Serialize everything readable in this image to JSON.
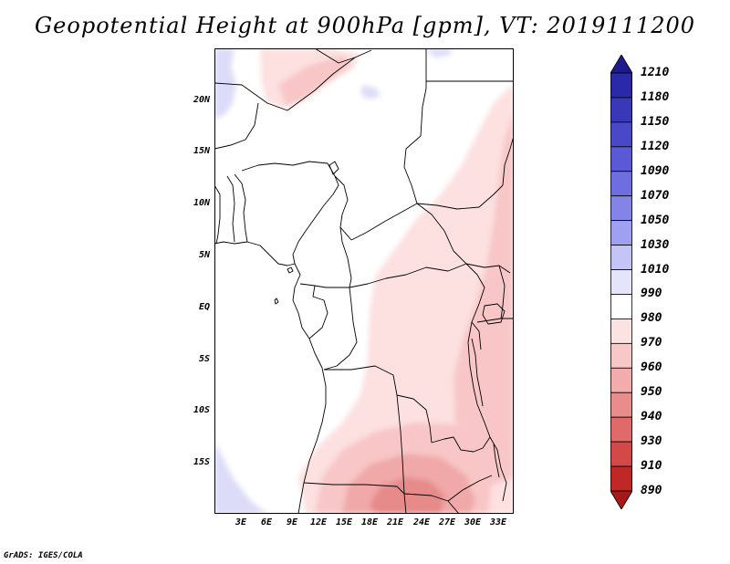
{
  "title": "Geopotential Height at 900hPa [gpm], VT: 2019111200",
  "map": {
    "lat_labels": [
      "20N",
      "15N",
      "10N",
      "5N",
      "EQ",
      "5S",
      "10S",
      "15S"
    ],
    "lon_labels": [
      "3E",
      "6E",
      "9E",
      "12E",
      "15E",
      "18E",
      "21E",
      "24E",
      "27E",
      "30E",
      "33E"
    ]
  },
  "colorbar": {
    "levels": [
      "1210",
      "1180",
      "1150",
      "1120",
      "1090",
      "1070",
      "1050",
      "1030",
      "1010",
      "990",
      "980",
      "970",
      "960",
      "950",
      "940",
      "930",
      "910",
      "890"
    ],
    "colors": [
      "#1e1a8c",
      "#2a2aa8",
      "#3838b8",
      "#4848c8",
      "#5a5ad6",
      "#6e6ee0",
      "#8484e8",
      "#a0a0f0",
      "#c4c4f6",
      "#e4e4fa",
      "#ffffff",
      "#fde2e2",
      "#f8c8c8",
      "#f2acac",
      "#ea8c8c",
      "#e06a6a",
      "#d44848",
      "#c02828",
      "#a81818"
    ]
  },
  "footer": "GrADS: IGES/COLA"
}
